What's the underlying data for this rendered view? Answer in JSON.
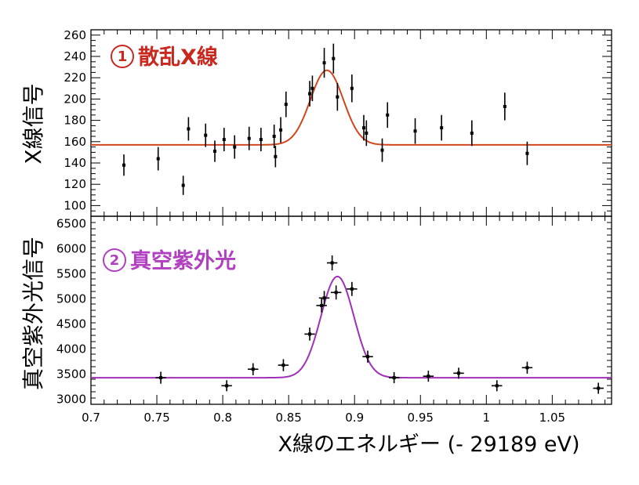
{
  "chart_data": [
    {
      "type": "scatter",
      "panel": "top",
      "title_number": "1",
      "title": "散乱X線",
      "title_color": "#c8281e",
      "ylabel": "X線信号",
      "ylim": [
        90,
        265
      ],
      "yticks": [
        100,
        120,
        140,
        160,
        180,
        200,
        220,
        240,
        260
      ],
      "fit_color": "#d2461e",
      "fit": {
        "baseline": 157,
        "amplitude": 70,
        "center": 0.879,
        "sigma": 0.0125
      },
      "points": [
        {
          "x": 0.725,
          "y": 138,
          "err": 10
        },
        {
          "x": 0.751,
          "y": 144,
          "err": 11
        },
        {
          "x": 0.77,
          "y": 119,
          "err": 9
        },
        {
          "x": 0.774,
          "y": 172,
          "err": 11
        },
        {
          "x": 0.787,
          "y": 166,
          "err": 11
        },
        {
          "x": 0.794,
          "y": 151,
          "err": 10
        },
        {
          "x": 0.801,
          "y": 162,
          "err": 11
        },
        {
          "x": 0.809,
          "y": 155,
          "err": 11
        },
        {
          "x": 0.82,
          "y": 163,
          "err": 11
        },
        {
          "x": 0.829,
          "y": 162,
          "err": 11
        },
        {
          "x": 0.839,
          "y": 165,
          "err": 11
        },
        {
          "x": 0.84,
          "y": 146,
          "err": 10
        },
        {
          "x": 0.844,
          "y": 171,
          "err": 12
        },
        {
          "x": 0.848,
          "y": 195,
          "err": 12
        },
        {
          "x": 0.866,
          "y": 205,
          "err": 12
        },
        {
          "x": 0.868,
          "y": 210,
          "err": 12
        },
        {
          "x": 0.877,
          "y": 234,
          "err": 14
        },
        {
          "x": 0.884,
          "y": 238,
          "err": 14
        },
        {
          "x": 0.887,
          "y": 202,
          "err": 13
        },
        {
          "x": 0.898,
          "y": 210,
          "err": 13
        },
        {
          "x": 0.907,
          "y": 173,
          "err": 12
        },
        {
          "x": 0.909,
          "y": 168,
          "err": 12
        },
        {
          "x": 0.921,
          "y": 152,
          "err": 11
        },
        {
          "x": 0.925,
          "y": 185,
          "err": 12
        },
        {
          "x": 0.946,
          "y": 170,
          "err": 12
        },
        {
          "x": 0.966,
          "y": 173,
          "err": 12
        },
        {
          "x": 0.989,
          "y": 168,
          "err": 12
        },
        {
          "x": 1.014,
          "y": 193,
          "err": 13
        },
        {
          "x": 1.031,
          "y": 149,
          "err": 11
        }
      ]
    },
    {
      "type": "scatter",
      "panel": "bottom",
      "title_number": "2",
      "title": "真空紫外光",
      "title_color": "#b040c0",
      "ylabel": "真空紫外光信号",
      "ylim": [
        2900,
        6650
      ],
      "yticks": [
        3000,
        3500,
        4000,
        4500,
        5000,
        5500,
        6000,
        6500
      ],
      "fit_color": "#a030b8",
      "fit": {
        "baseline": 3430,
        "amplitude": 2020,
        "center": 0.887,
        "sigma": 0.0125
      },
      "points": [
        {
          "x": 0.753,
          "y": 3430,
          "err": 120,
          "xerr": 0.004
        },
        {
          "x": 0.803,
          "y": 3270,
          "err": 110,
          "xerr": 0.004
        },
        {
          "x": 0.823,
          "y": 3600,
          "err": 120,
          "xerr": 0.004
        },
        {
          "x": 0.846,
          "y": 3680,
          "err": 120,
          "xerr": 0.004
        },
        {
          "x": 0.866,
          "y": 4300,
          "err": 130,
          "xerr": 0.004
        },
        {
          "x": 0.875,
          "y": 4870,
          "err": 140,
          "xerr": 0.004
        },
        {
          "x": 0.877,
          "y": 5020,
          "err": 140,
          "xerr": 0.004
        },
        {
          "x": 0.883,
          "y": 5720,
          "err": 150,
          "xerr": 0.004
        },
        {
          "x": 0.886,
          "y": 5130,
          "err": 140,
          "xerr": 0.004
        },
        {
          "x": 0.898,
          "y": 5200,
          "err": 140,
          "xerr": 0.004
        },
        {
          "x": 0.91,
          "y": 3850,
          "err": 120,
          "xerr": 0.004
        },
        {
          "x": 0.93,
          "y": 3430,
          "err": 110,
          "xerr": 0.004
        },
        {
          "x": 0.956,
          "y": 3460,
          "err": 110,
          "xerr": 0.004
        },
        {
          "x": 0.979,
          "y": 3520,
          "err": 110,
          "xerr": 0.004
        },
        {
          "x": 1.008,
          "y": 3270,
          "err": 110,
          "xerr": 0.004
        },
        {
          "x": 1.031,
          "y": 3630,
          "err": 120,
          "xerr": 0.004
        },
        {
          "x": 1.085,
          "y": 3220,
          "err": 110,
          "xerr": 0.004
        }
      ]
    }
  ],
  "xaxis": {
    "xlabel": "X線のエネルギー (- 29189 eV)",
    "xlim": [
      0.7,
      1.095
    ],
    "xticks": [
      0.7,
      0.75,
      0.8,
      0.85,
      0.9,
      0.95,
      1,
      1.05
    ],
    "xtick_labels": [
      "0.7",
      "0.75",
      "0.8",
      "0.85",
      "0.9",
      "0.95",
      "1",
      "1.05"
    ]
  }
}
